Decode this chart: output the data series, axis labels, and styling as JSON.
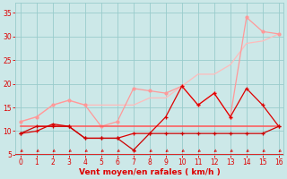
{
  "x": [
    0,
    1,
    2,
    3,
    4,
    5,
    6,
    7,
    8,
    9,
    10,
    11,
    12,
    13,
    14,
    15,
    16
  ],
  "line_upper_envelope": [
    12,
    13,
    15.5,
    16.5,
    15.5,
    15.5,
    15.5,
    15.5,
    17,
    17,
    19.5,
    22,
    22,
    24,
    28.5,
    29,
    30.5
  ],
  "line_jagged_pink": [
    12,
    13,
    15.5,
    16.5,
    15.5,
    11,
    12,
    19,
    18.5,
    18,
    19.5,
    15.5,
    18,
    13,
    34,
    31,
    30.5
  ],
  "line_flat": [
    11,
    11,
    11,
    11,
    11,
    11,
    11,
    11,
    11,
    11,
    11,
    11,
    11,
    11,
    11,
    11,
    11
  ],
  "line_dark_upper": [
    9.5,
    10,
    11.5,
    11,
    8.5,
    8.5,
    8.5,
    9.5,
    9.5,
    13,
    19.5,
    15.5,
    18,
    13,
    19,
    15.5,
    11
  ],
  "line_dark_lower": [
    9.5,
    11,
    11,
    11,
    8.5,
    8.5,
    8.5,
    6,
    9.5,
    9.5,
    9.5,
    9.5,
    9.5,
    9.5,
    9.5,
    9.5,
    11
  ],
  "xlabel": "Vent moyen/en rafales ( km/h )",
  "ylim": [
    5,
    37
  ],
  "xlim": [
    -0.3,
    16.3
  ],
  "yticks": [
    5,
    10,
    15,
    20,
    25,
    30,
    35
  ],
  "xticks": [
    0,
    1,
    2,
    3,
    4,
    5,
    6,
    7,
    8,
    9,
    10,
    11,
    12,
    13,
    14,
    15,
    16
  ],
  "bg_color": "#cce8e8",
  "grid_color": "#99cccc",
  "color_lightest": "#ffbbbb",
  "color_light": "#ff9999",
  "color_medium": "#ff5555",
  "color_dark": "#dd0000",
  "color_darkest": "#cc0000"
}
